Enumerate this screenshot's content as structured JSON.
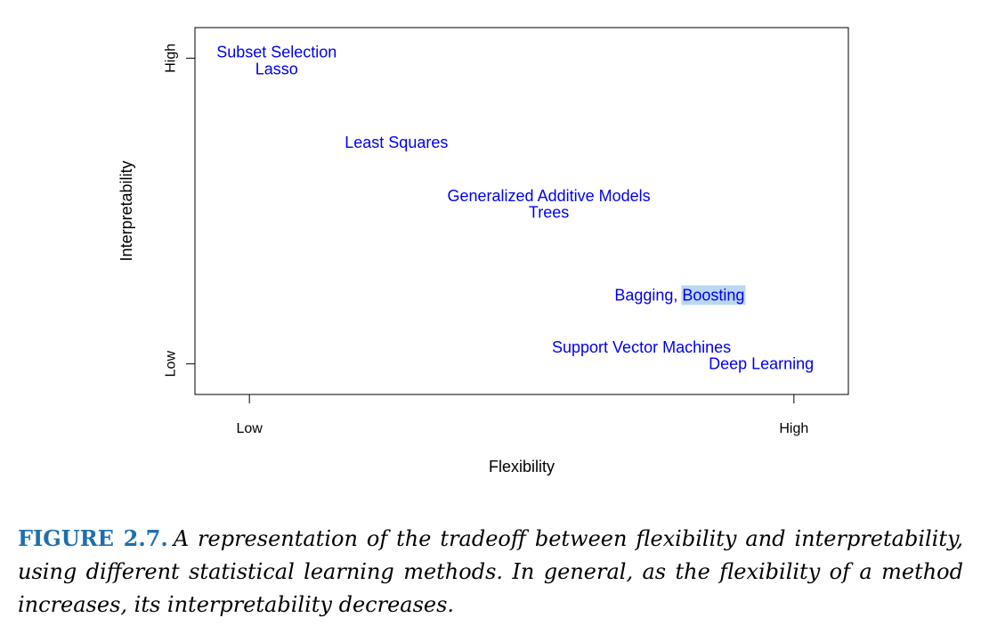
{
  "chart_data": {
    "type": "scatter",
    "title": "",
    "xlabel": "Flexibility",
    "ylabel": "Interpretability",
    "xlim": [
      -0.1,
      1.1
    ],
    "ylim": [
      -0.1,
      1.1
    ],
    "x_ticks": [
      {
        "value": 0,
        "label": "Low"
      },
      {
        "value": 1,
        "label": "High"
      }
    ],
    "y_ticks": [
      {
        "value": 0,
        "label": "Low"
      },
      {
        "value": 1,
        "label": "High"
      }
    ],
    "grid": false,
    "points": [
      {
        "label": "Subset Selection",
        "x": 0.05,
        "y": 1.02
      },
      {
        "label": "Lasso",
        "x": 0.05,
        "y": 0.965
      },
      {
        "label": "Least Squares",
        "x": 0.27,
        "y": 0.725
      },
      {
        "label": "Generalized Additive Models",
        "x": 0.55,
        "y": 0.55
      },
      {
        "label": "Trees",
        "x": 0.55,
        "y": 0.495
      },
      {
        "label": "Bagging, Boosting",
        "x": 0.79,
        "y": 0.225,
        "highlight": "Boosting"
      },
      {
        "label": "Support Vector Machines",
        "x": 0.72,
        "y": 0.055
      },
      {
        "label": "Deep Learning",
        "x": 0.94,
        "y": 0.0
      }
    ],
    "colors": {
      "labels": "#0000ee",
      "highlight": "#bcd7f2",
      "caption_label": "#1f6fae"
    }
  },
  "caption": {
    "label": "FIGURE 2.7.",
    "text": "A representation of the tradeoff between flexibility and interpretability, using different statistical learning methods. In general, as the flexibility of a method increases, its interpretability decreases."
  }
}
